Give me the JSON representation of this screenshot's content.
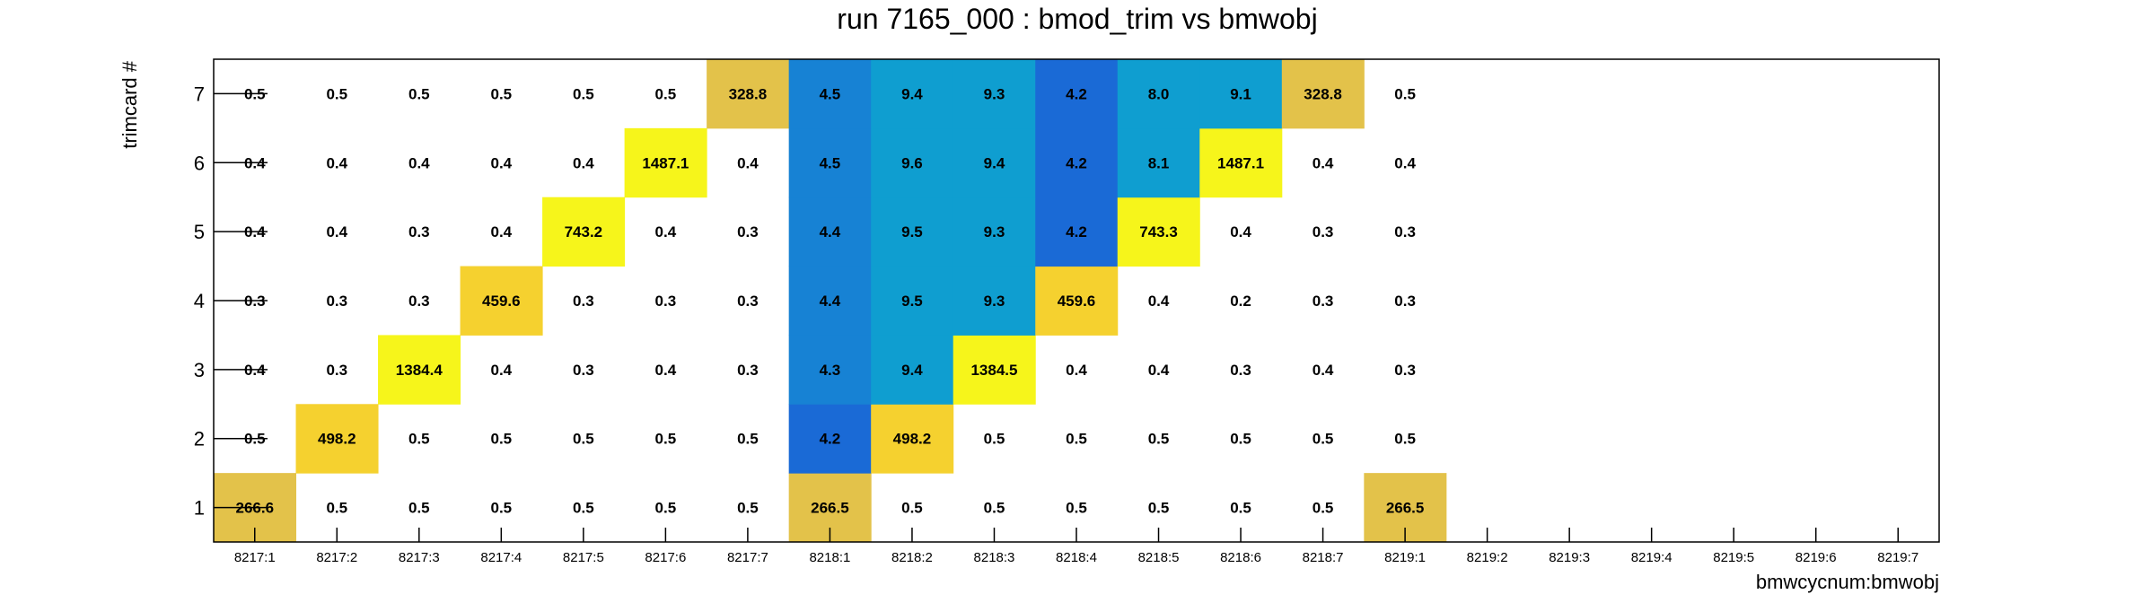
{
  "chart_data": {
    "type": "heatmap",
    "title": "run 7165_000 : bmod_trim vs bmwobj",
    "xlabel": "bmwcycnum:bmwobj",
    "ylabel": "trimcard #",
    "x_categories": [
      "8217:1",
      "8217:2",
      "8217:3",
      "8217:4",
      "8217:5",
      "8217:6",
      "8217:7",
      "8218:1",
      "8218:2",
      "8218:3",
      "8218:4",
      "8218:5",
      "8218:6",
      "8218:7",
      "8219:1",
      "8219:2",
      "8219:3",
      "8219:4",
      "8219:5",
      "8219:6",
      "8219:7"
    ],
    "y_categories": [
      "1",
      "2",
      "3",
      "4",
      "5",
      "6",
      "7"
    ],
    "values": [
      [
        266.6,
        0.5,
        0.5,
        0.5,
        0.5,
        0.5,
        0.5,
        266.5,
        0.5,
        0.5,
        0.5,
        0.5,
        0.5,
        0.5,
        266.5,
        null,
        null,
        null,
        null,
        null,
        null
      ],
      [
        0.5,
        498.2,
        0.5,
        0.5,
        0.5,
        0.5,
        0.5,
        4.2,
        498.2,
        0.5,
        0.5,
        0.5,
        0.5,
        0.5,
        0.5,
        null,
        null,
        null,
        null,
        null,
        null
      ],
      [
        0.4,
        0.3,
        1384.4,
        0.4,
        0.3,
        0.4,
        0.3,
        4.3,
        9.4,
        1384.5,
        0.4,
        0.4,
        0.3,
        0.4,
        0.3,
        null,
        null,
        null,
        null,
        null,
        null
      ],
      [
        0.3,
        0.3,
        0.3,
        459.6,
        0.3,
        0.3,
        0.3,
        4.4,
        9.5,
        9.3,
        459.6,
        0.4,
        0.2,
        0.3,
        0.3,
        null,
        null,
        null,
        null,
        null,
        null
      ],
      [
        0.4,
        0.4,
        0.3,
        0.4,
        743.2,
        0.4,
        0.3,
        4.4,
        9.5,
        9.3,
        4.2,
        743.3,
        0.4,
        0.3,
        0.3,
        null,
        null,
        null,
        null,
        null,
        null
      ],
      [
        0.4,
        0.4,
        0.4,
        0.4,
        0.4,
        1487.1,
        0.4,
        4.5,
        9.6,
        9.4,
        4.2,
        8.1,
        1487.1,
        0.4,
        0.4,
        null,
        null,
        null,
        null,
        null,
        null
      ],
      [
        0.5,
        0.5,
        0.5,
        0.5,
        0.5,
        0.5,
        328.8,
        4.5,
        9.4,
        9.3,
        4.2,
        8.0,
        9.1,
        328.8,
        0.5,
        null,
        null,
        null,
        null,
        null,
        null
      ]
    ],
    "colors": {
      "low_blue": "#1a6ad6",
      "mid_blue": "#1782d4",
      "cyan": "#0f9ed0",
      "tan_gold": "#e3c24a",
      "gold": "#f5d12f",
      "yellow": "#f6f51b",
      "frame": "#000000"
    },
    "grid": false,
    "legend": "none"
  }
}
